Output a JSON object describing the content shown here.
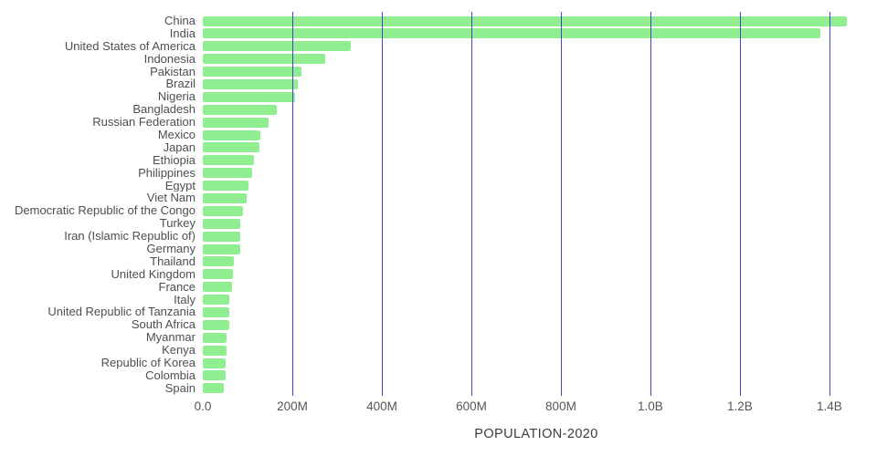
{
  "chart_data": {
    "type": "bar",
    "orientation": "horizontal",
    "title": "",
    "xlabel": "POPULATION-2020",
    "ylabel": "",
    "units": "millions",
    "xlim": [
      0,
      1490
    ],
    "grid": true,
    "legend_position": "none",
    "bar_color": "#90ee90",
    "gridline_color": "#4444cc",
    "categories": [
      "China",
      "India",
      "United States of America",
      "Indonesia",
      "Pakistan",
      "Brazil",
      "Nigeria",
      "Bangladesh",
      "Russian Federation",
      "Mexico",
      "Japan",
      "Ethiopia",
      "Philippines",
      "Egypt",
      "Viet Nam",
      "Democratic Republic of the Congo",
      "Turkey",
      "Iran (Islamic Republic of)",
      "Germany",
      "Thailand",
      "United Kingdom",
      "France",
      "Italy",
      "United Republic of Tanzania",
      "South Africa",
      "Myanmar",
      "Kenya",
      "Republic of Korea",
      "Colombia",
      "Spain"
    ],
    "values": [
      1439,
      1380,
      331,
      274,
      221,
      213,
      206,
      165,
      146,
      129,
      126,
      115,
      110,
      102,
      97,
      90,
      84,
      84,
      84,
      70,
      68,
      65,
      60,
      60,
      59,
      54,
      54,
      51,
      51,
      47
    ],
    "x_ticks": [
      {
        "label": "0.0",
        "value": 0
      },
      {
        "label": "200M",
        "value": 200
      },
      {
        "label": "400M",
        "value": 400
      },
      {
        "label": "600M",
        "value": 600
      },
      {
        "label": "800M",
        "value": 800
      },
      {
        "label": "1.0B",
        "value": 1000
      },
      {
        "label": "1.2B",
        "value": 1200
      },
      {
        "label": "1.4B",
        "value": 1400
      }
    ]
  }
}
